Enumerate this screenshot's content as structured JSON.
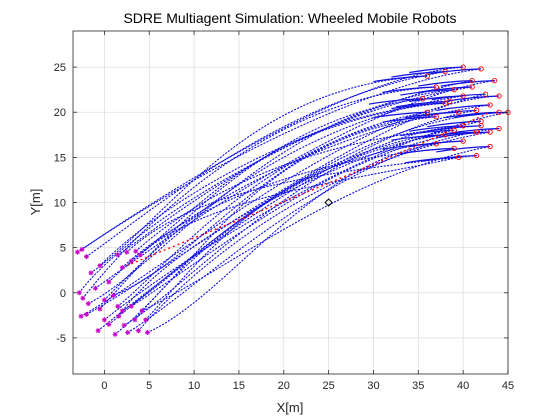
{
  "chart_data": {
    "type": "scatter",
    "title": "SDRE Multiagent Simulation: Wheeled Mobile Robots",
    "xlabel": "X[m]",
    "ylabel": "Y[m]",
    "xlim": [
      -3.5,
      45
    ],
    "ylim": [
      -9,
      29
    ],
    "xticks": [
      0,
      5,
      10,
      15,
      20,
      25,
      30,
      35,
      40,
      45
    ],
    "xtick_labels": [
      "0",
      "5",
      "10",
      "15",
      "20",
      "25",
      "30",
      "35",
      "40",
      "45"
    ],
    "yticks": [
      -5,
      0,
      5,
      10,
      15,
      20,
      25
    ],
    "ytick_labels": [
      "-5",
      "0",
      "5",
      "10",
      "15",
      "20",
      "25"
    ],
    "grid": true,
    "colors": {
      "trajectory": "#1010e0",
      "start_marker": "#c800c8",
      "end_marker": "#ff0000",
      "leader_path": "#ff0000",
      "obstacle": "#000000",
      "grid": "#dedede"
    },
    "obstacle": {
      "x": 25,
      "y": 10,
      "marker": "diamond"
    },
    "leader_path": {
      "start": [
        2.5,
        3
      ],
      "end": [
        43,
        20
      ]
    },
    "agents": {
      "start_points": [
        [
          -3,
          4.5
        ],
        [
          -2.5,
          4.8
        ],
        [
          -2,
          4
        ],
        [
          -1.5,
          2.2
        ],
        [
          -1,
          0.5
        ],
        [
          -2.8,
          0
        ],
        [
          -2.4,
          -0.6
        ],
        [
          -1.8,
          -1.2
        ],
        [
          -2,
          -2.4
        ],
        [
          -2.6,
          -2.6
        ],
        [
          -0.5,
          -1.8
        ],
        [
          0,
          -0.8
        ],
        [
          -0.5,
          3
        ],
        [
          0.5,
          1.2
        ],
        [
          1,
          -0.3
        ],
        [
          1.5,
          -1.5
        ],
        [
          -0.7,
          -4.2
        ],
        [
          0,
          -3
        ],
        [
          0.5,
          -3.5
        ],
        [
          1.2,
          -4.6
        ],
        [
          1.6,
          -2.6
        ],
        [
          2.2,
          -3.6
        ],
        [
          2.6,
          -4.4
        ],
        [
          2,
          -2
        ],
        [
          3,
          -1.5
        ],
        [
          3.4,
          -3
        ],
        [
          3.8,
          -4.2
        ],
        [
          4.6,
          -3
        ],
        [
          4.8,
          -4.4
        ],
        [
          4.2,
          -2
        ],
        [
          2,
          2.8
        ],
        [
          2.5,
          4.5
        ],
        [
          3,
          3.5
        ],
        [
          3.5,
          4.6
        ],
        [
          4,
          4.2
        ],
        [
          1.5,
          4.2
        ]
      ],
      "end_points": [
        [
          40,
          25
        ],
        [
          42,
          24.8
        ],
        [
          38,
          24.5
        ],
        [
          36,
          24
        ],
        [
          43.5,
          23.5
        ],
        [
          41,
          23.5
        ],
        [
          37,
          22.8
        ],
        [
          39,
          22.5
        ],
        [
          42.5,
          22
        ],
        [
          44,
          21.8
        ],
        [
          35.5,
          21.5
        ],
        [
          40,
          21.8
        ],
        [
          38,
          21
        ],
        [
          43,
          20.8
        ],
        [
          36,
          20
        ],
        [
          39.5,
          20
        ],
        [
          41.5,
          20.2
        ],
        [
          45,
          20
        ],
        [
          44,
          20
        ],
        [
          37,
          19.5
        ],
        [
          42,
          19
        ],
        [
          40,
          18.5
        ],
        [
          44,
          18.2
        ],
        [
          39,
          18
        ],
        [
          41.5,
          17.8
        ],
        [
          38,
          17.5
        ],
        [
          43,
          17.8
        ],
        [
          40,
          16.8
        ],
        [
          37,
          16.5
        ],
        [
          43,
          16.2
        ],
        [
          39,
          16
        ],
        [
          41.5,
          15.2
        ],
        [
          39.5,
          15
        ],
        [
          42,
          18.5
        ],
        [
          38.5,
          21.2
        ],
        [
          41,
          22.8
        ]
      ]
    }
  }
}
